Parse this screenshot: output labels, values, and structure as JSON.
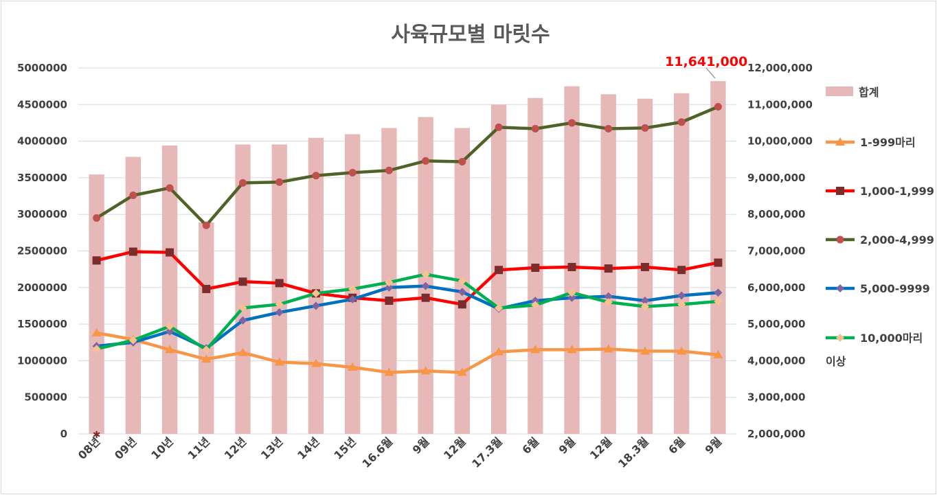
{
  "chart_data": {
    "type": "bar+line",
    "title": "사육규모별 마릿수",
    "categories": [
      "08년",
      "09년",
      "10년",
      "11년",
      "12년",
      "13년",
      "14년",
      "15년",
      "16.6월",
      "9월",
      "12월",
      "17.3월",
      "6월",
      "9월",
      "12월",
      "18.3월",
      "6월",
      "9월"
    ],
    "left_axis": {
      "min": 0,
      "max": 5000000,
      "ticks": [
        "0",
        "500000",
        "1000000",
        "1500000",
        "2000000",
        "2500000",
        "3000000",
        "3500000",
        "4000000",
        "4500000",
        "5000000"
      ]
    },
    "right_axis": {
      "min": 2000000,
      "max": 12000000,
      "ticks": [
        "2,000,000",
        "3,000,000",
        "4,000,000",
        "5,000,000",
        "6,000,000",
        "7,000,000",
        "8,000,000",
        "9,000,000",
        "10,000,000",
        "11,000,000",
        "12,000,000"
      ]
    },
    "bar_series": {
      "name": "합계",
      "axis": "right",
      "color": "#e6b9b8",
      "values": [
        9090000,
        9570000,
        9880000,
        7780000,
        9910000,
        9910000,
        10090000,
        10190000,
        10360000,
        10660000,
        10360000,
        11000000,
        11180000,
        11500000,
        11280000,
        11160000,
        11310000,
        11641000
      ]
    },
    "line_series": [
      {
        "name": "1-999마리",
        "color": "#f79646",
        "marker_color": "#f79646",
        "marker": "triangle",
        "values": [
          1380000,
          1290000,
          1150000,
          1020000,
          1110000,
          980000,
          960000,
          910000,
          840000,
          860000,
          840000,
          1120000,
          1150000,
          1150000,
          1160000,
          1130000,
          1130000,
          1080000
        ]
      },
      {
        "name": "1,000-1,999",
        "color": "#ff0000",
        "marker_color": "#7b2c2c",
        "marker": "square",
        "values": [
          2370000,
          2490000,
          2480000,
          1980000,
          2080000,
          2060000,
          1920000,
          1860000,
          1820000,
          1860000,
          1770000,
          2240000,
          2270000,
          2280000,
          2260000,
          2280000,
          2240000,
          2340000
        ]
      },
      {
        "name": "2,000-4,999",
        "color": "#4f6228",
        "marker_color": "#c0504d",
        "marker": "circle",
        "values": [
          2950000,
          3260000,
          3360000,
          2850000,
          3430000,
          3440000,
          3530000,
          3570000,
          3600000,
          3730000,
          3720000,
          4190000,
          4170000,
          4250000,
          4170000,
          4180000,
          4260000,
          4470000
        ]
      },
      {
        "name": "5,000-9999",
        "color": "#0070c0",
        "marker_color": "#8064a2",
        "marker": "diamond",
        "values": [
          1200000,
          1250000,
          1400000,
          1170000,
          1550000,
          1660000,
          1750000,
          1840000,
          2000000,
          2020000,
          1940000,
          1710000,
          1820000,
          1860000,
          1880000,
          1820000,
          1890000,
          1930000
        ]
      },
      {
        "name": "10,000마리 이상",
        "color": "#00b050",
        "marker_color": "#fac090",
        "marker": "diamond",
        "values": [
          1160000,
          1280000,
          1470000,
          1150000,
          1720000,
          1770000,
          1920000,
          1980000,
          2070000,
          2180000,
          2090000,
          1720000,
          1760000,
          1930000,
          1800000,
          1740000,
          1770000,
          1810000
        ]
      }
    ],
    "annotations": [
      {
        "text": "11,641,000",
        "target": "합계 last bar"
      }
    ],
    "legend": [
      "합계",
      "1-999마리",
      "1,000-1,999",
      "2,000-4,999",
      "5,000-9999",
      "10,000마리",
      "이상"
    ],
    "grid": true,
    "legend_position": "right"
  }
}
